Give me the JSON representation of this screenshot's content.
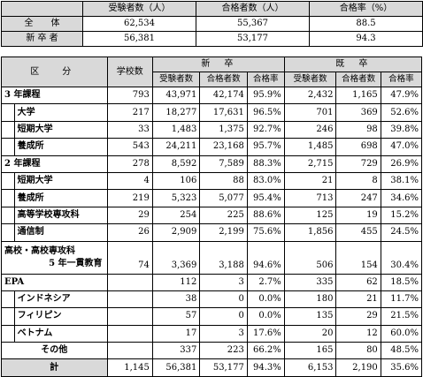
{
  "summary": {
    "headers": [
      "受験者数（人）",
      "合格者数（人）",
      "合格率（%）"
    ],
    "rows": [
      {
        "label": "全　　体",
        "values": [
          "62,534",
          "55,367",
          "88.5"
        ]
      },
      {
        "label": "新 卒 者",
        "values": [
          "56,381",
          "53,177",
          "94.3"
        ]
      }
    ]
  },
  "main": {
    "header": {
      "category": "区　分",
      "schools": "学校数",
      "new_grad": "新　卒",
      "existing": "既　卒",
      "sub": [
        "受験者数",
        "合格者数",
        "合格率",
        "受験者数",
        "合格者数",
        "合格率"
      ]
    },
    "rows": [
      {
        "label": "3 年課程",
        "level": 0,
        "values": [
          "793",
          "43,971",
          "42,174",
          "95.9%",
          "2,432",
          "1,165",
          "47.9%"
        ]
      },
      {
        "label": "大学",
        "level": 1,
        "values": [
          "217",
          "18,277",
          "17,631",
          "96.5%",
          "701",
          "369",
          "52.6%"
        ]
      },
      {
        "label": "短期大学",
        "level": 1,
        "values": [
          "33",
          "1,483",
          "1,375",
          "92.7%",
          "246",
          "98",
          "39.8%"
        ]
      },
      {
        "label": "養成所",
        "level": 1,
        "values": [
          "543",
          "24,211",
          "23,168",
          "95.7%",
          "1,485",
          "698",
          "47.0%"
        ]
      },
      {
        "label": "2 年課程",
        "level": 0,
        "values": [
          "278",
          "8,592",
          "7,589",
          "88.3%",
          "2,715",
          "729",
          "26.9%"
        ]
      },
      {
        "label": "短期大学",
        "level": 1,
        "values": [
          "4",
          "106",
          "88",
          "83.0%",
          "21",
          "8",
          "38.1%"
        ]
      },
      {
        "label": "養成所",
        "level": 1,
        "values": [
          "219",
          "5,323",
          "5,077",
          "95.4%",
          "713",
          "247",
          "34.6%"
        ]
      },
      {
        "label": "高等学校専攻科",
        "level": 1,
        "values": [
          "29",
          "254",
          "225",
          "88.6%",
          "125",
          "19",
          "15.2%"
        ]
      },
      {
        "label": "通信制",
        "level": 1,
        "values": [
          "26",
          "2,909",
          "2,199",
          "75.6%",
          "1,856",
          "455",
          "24.5%"
        ]
      },
      {
        "label": "高校・高校専攻科",
        "label2": "5 年一貫教育",
        "level": 0,
        "values": [
          "74",
          "3,369",
          "3,188",
          "94.6%",
          "506",
          "154",
          "30.4%"
        ]
      },
      {
        "label": "EPA",
        "level": 0,
        "values": [
          "",
          "112",
          "3",
          "2.7%",
          "335",
          "62",
          "18.5%"
        ]
      },
      {
        "label": "インドネシア",
        "level": 1,
        "values": [
          "",
          "38",
          "0",
          "0.0%",
          "180",
          "21",
          "11.7%"
        ]
      },
      {
        "label": "フィリピン",
        "level": 1,
        "values": [
          "",
          "57",
          "0",
          "0.0%",
          "135",
          "29",
          "21.5%"
        ]
      },
      {
        "label": "ベトナム",
        "level": 1,
        "values": [
          "",
          "17",
          "3",
          "17.6%",
          "20",
          "12",
          "60.0%"
        ]
      },
      {
        "label": "その他",
        "level": 2,
        "values": [
          "",
          "337",
          "223",
          "66.2%",
          "165",
          "80",
          "48.5%"
        ]
      },
      {
        "label": "計",
        "level": 3,
        "values": [
          "1,145",
          "56,381",
          "53,177",
          "94.3%",
          "6,153",
          "2,190",
          "35.6%"
        ]
      }
    ]
  }
}
